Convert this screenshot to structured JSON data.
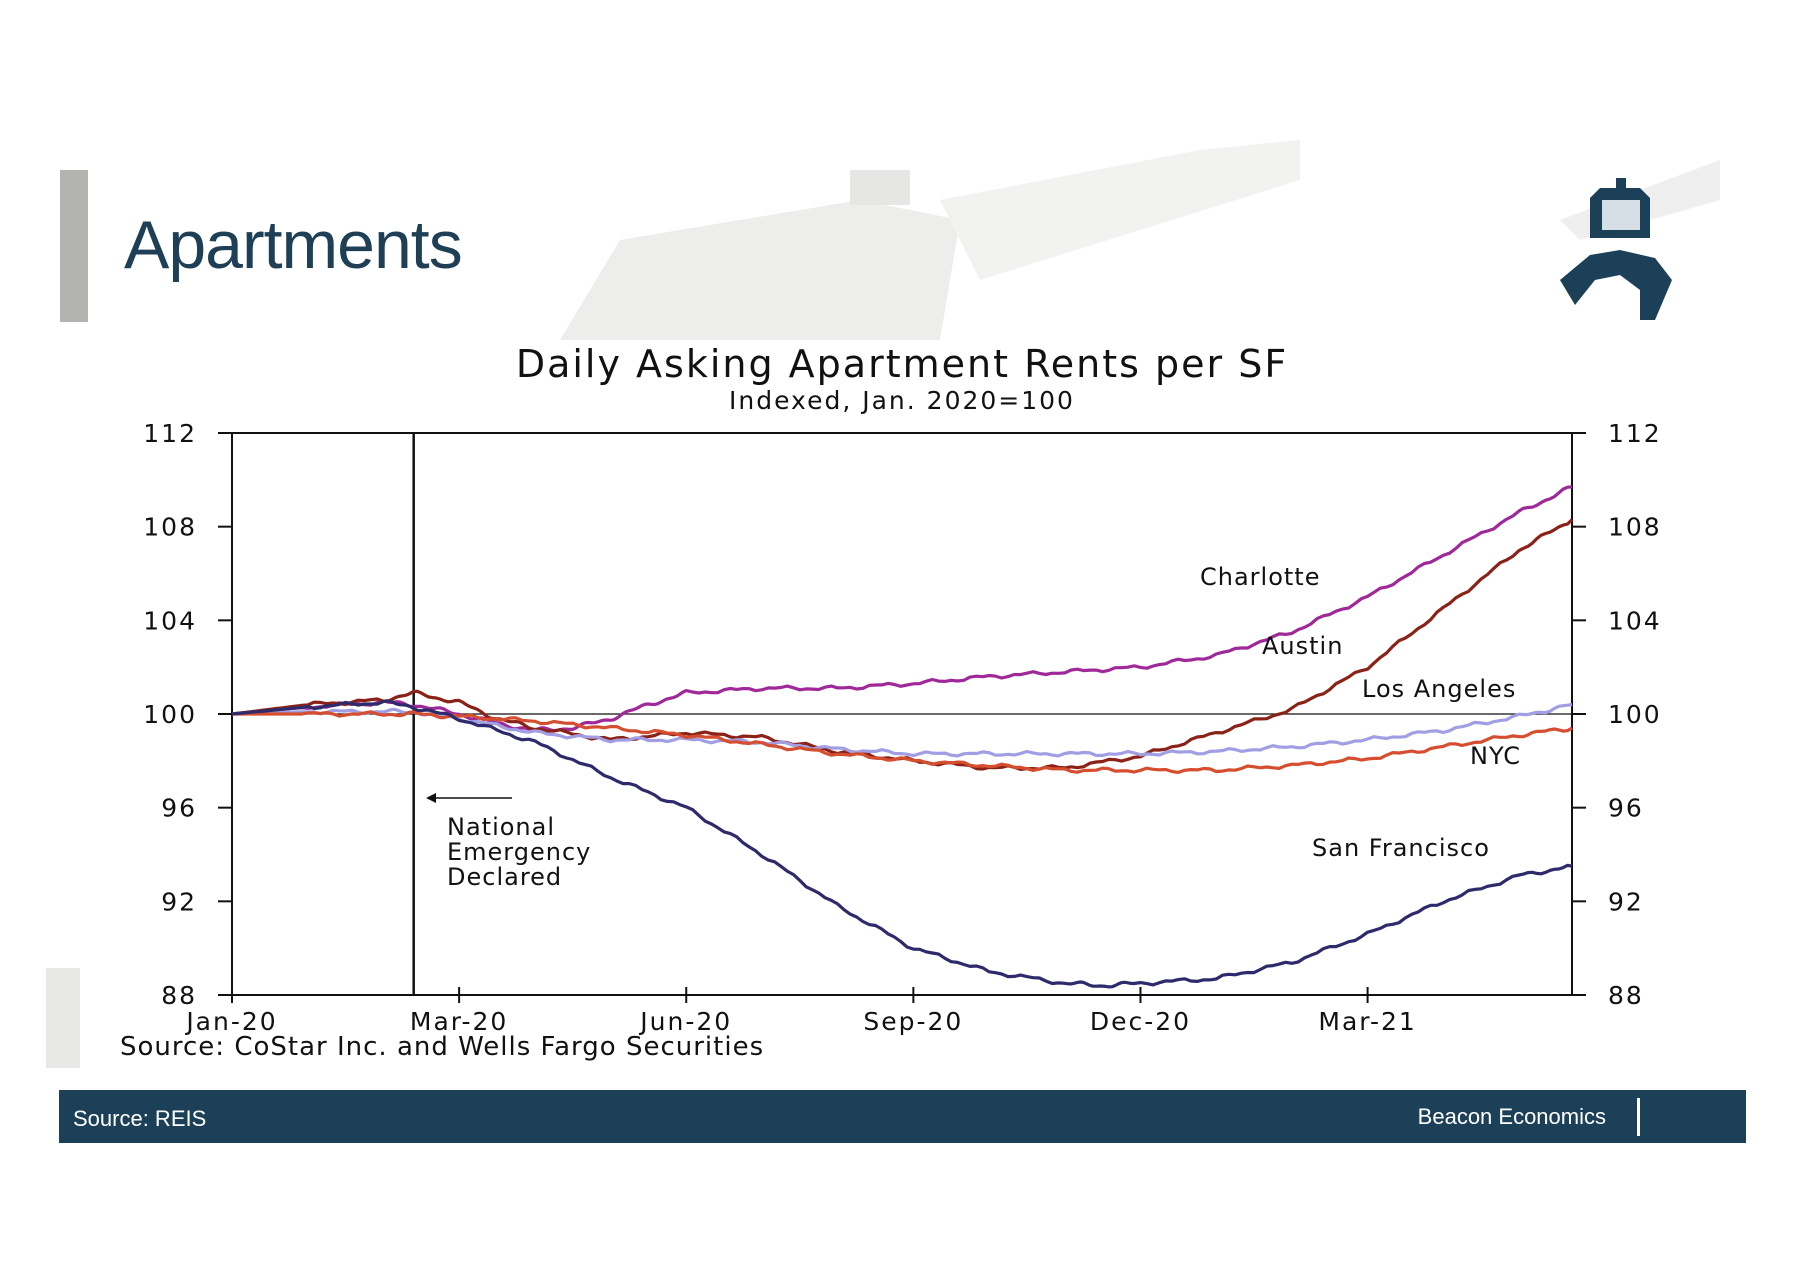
{
  "slide": {
    "title": "Apartments"
  },
  "footer": {
    "source": "Source: REIS",
    "brand": "Beacon Economics"
  },
  "colors": {
    "navy": "#1c4057",
    "title": "#1e3f56",
    "grey_bar": "#b3b3b0"
  },
  "chart_data": {
    "type": "line",
    "title": "Daily Asking Apartment Rents per SF",
    "subtitle": "Indexed, Jan. 2020=100",
    "source": "Source: CoStar Inc. and Wells Fargo Securities",
    "xlabel": "",
    "ylabel": "",
    "ylim": [
      88,
      112
    ],
    "xlim": [
      0,
      17.7
    ],
    "yticks": [
      "88",
      "92",
      "96",
      "100",
      "104",
      "108",
      "112"
    ],
    "ytick_values": [
      88,
      92,
      96,
      100,
      104,
      108,
      112
    ],
    "xtick_labels": [
      "Jan-20",
      "Mar-20",
      "Jun-20",
      "Sep-20",
      "Dec-20",
      "Mar-21"
    ],
    "xtick_values": [
      0,
      3,
      6,
      9,
      12,
      15
    ],
    "reference_line": 100,
    "event_line": {
      "x": 2.4,
      "label_lines": [
        "National",
        "Emergency",
        "Declared"
      ]
    },
    "series": [
      {
        "name": "Charlotte",
        "color": "#a0299a",
        "x": [
          0,
          1,
          2,
          2.4,
          3,
          3.5,
          4,
          4.5,
          5,
          5.5,
          6,
          7,
          8,
          9,
          10,
          11,
          12,
          13,
          14,
          15,
          16,
          17,
          17.7
        ],
        "values": [
          100,
          100.3,
          100.5,
          100.4,
          100,
          99.6,
          99.3,
          99.4,
          99.8,
          100.4,
          100.9,
          101.1,
          101.1,
          101.3,
          101.6,
          101.8,
          102.0,
          102.5,
          103.5,
          105.0,
          106.8,
          108.6,
          109.7
        ]
      },
      {
        "name": "Austin",
        "color": "#8b2218",
        "x": [
          0,
          1,
          2,
          2.4,
          3,
          3.5,
          4,
          5,
          6,
          7,
          8,
          9,
          10,
          11,
          12,
          13,
          14,
          15,
          16,
          17,
          17.7
        ],
        "values": [
          100,
          100.4,
          100.6,
          100.9,
          100.5,
          99.8,
          99.4,
          98.9,
          99.2,
          99.0,
          98.4,
          98.0,
          97.7,
          97.7,
          98.2,
          99.2,
          100.2,
          102.0,
          104.5,
          107.0,
          108.3
        ]
      },
      {
        "name": "Los Angeles",
        "color": "#a19ee3",
        "x": [
          0,
          1,
          2,
          2.4,
          3,
          4,
          5,
          6,
          7,
          8,
          9,
          10,
          11,
          12,
          13,
          14,
          15,
          16,
          17,
          17.7
        ],
        "values": [
          100,
          100.1,
          100.1,
          100.1,
          99.8,
          99.2,
          98.9,
          98.9,
          98.8,
          98.5,
          98.3,
          98.3,
          98.3,
          98.3,
          98.4,
          98.6,
          98.9,
          99.3,
          99.9,
          100.4
        ]
      },
      {
        "name": "NYC",
        "color": "#d44e2f",
        "x": [
          0,
          1,
          2,
          2.4,
          3,
          4,
          5,
          6,
          7,
          8,
          9,
          10,
          11,
          12,
          13,
          14,
          15,
          16,
          17,
          17.7
        ],
        "values": [
          100,
          100.0,
          100.0,
          100.0,
          99.9,
          99.7,
          99.4,
          99.1,
          98.7,
          98.3,
          98.0,
          97.8,
          97.6,
          97.6,
          97.6,
          97.8,
          98.1,
          98.6,
          99.1,
          99.4
        ]
      },
      {
        "name": "San Francisco",
        "color": "#2e2a6b",
        "x": [
          0,
          1,
          2,
          2.4,
          3,
          4,
          5,
          6,
          7,
          8,
          9,
          10,
          11,
          11.5,
          12,
          13,
          14,
          15,
          16,
          17,
          17.7
        ],
        "values": [
          100,
          100.3,
          100.5,
          100.3,
          99.8,
          98.8,
          97.3,
          96.0,
          94.0,
          91.8,
          90.0,
          89.0,
          88.5,
          88.4,
          88.5,
          88.7,
          89.4,
          90.6,
          92.0,
          93.1,
          93.5
        ]
      }
    ],
    "series_labels": [
      "Charlotte",
      "Austin",
      "Los Angeles",
      "NYC",
      "San Francisco"
    ]
  }
}
